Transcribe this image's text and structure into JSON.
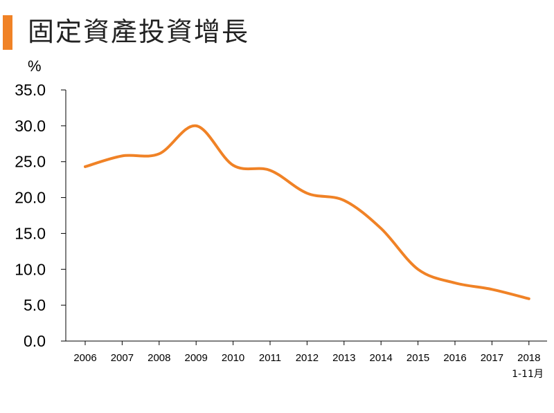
{
  "page_title": "固定資產投資增長",
  "accent_color": "#f08226",
  "chart_data": {
    "type": "line",
    "title": "固定資產投資增長",
    "ylabel": "%",
    "xlabel": "",
    "ylim": [
      0,
      35
    ],
    "yticks": [
      "0.0",
      "5.0",
      "10.0",
      "15.0",
      "20.0",
      "25.0",
      "30.0",
      "35.0"
    ],
    "categories": [
      "2006",
      "2007",
      "2008",
      "2009",
      "2010",
      "2011",
      "2012",
      "2013",
      "2014",
      "2015",
      "2016",
      "2017",
      "2018"
    ],
    "last_category_note": "1-11月",
    "series": [
      {
        "color": "#f08226",
        "values": [
          24.3,
          25.8,
          26.1,
          30.0,
          24.5,
          23.8,
          20.6,
          19.6,
          15.7,
          10.0,
          8.1,
          7.2,
          5.9
        ]
      }
    ],
    "grid": false,
    "legend": "none"
  }
}
